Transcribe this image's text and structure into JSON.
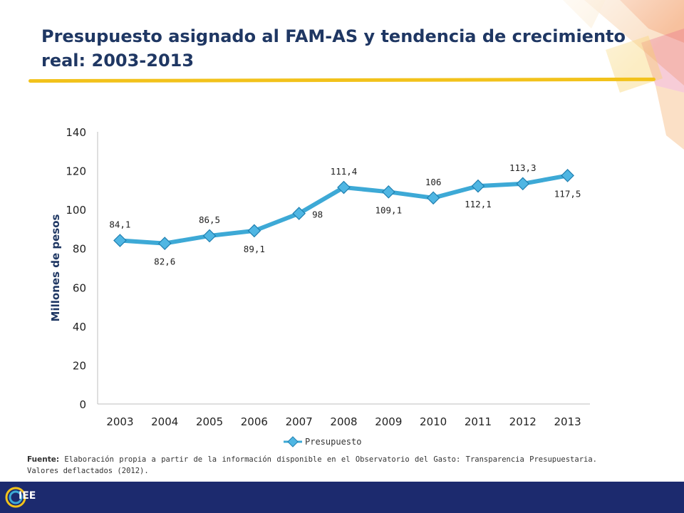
{
  "header": {
    "title": "Presupuesto asignado al FAM-AS y tendencia de crecimiento real: 2003-2013"
  },
  "chart_data": {
    "type": "line",
    "title": "",
    "xlabel": "",
    "ylabel": "Millones de pesos",
    "ylim": [
      0,
      140
    ],
    "yticks": [
      "0",
      "20",
      "40",
      "60",
      "80",
      "100",
      "120",
      "140"
    ],
    "categories": [
      "2003",
      "2004",
      "2005",
      "2006",
      "2007",
      "2008",
      "2009",
      "2010",
      "2011",
      "2012",
      "2013"
    ],
    "series": [
      {
        "name": "Presupuesto",
        "values": [
          84.1,
          82.6,
          86.5,
          89.1,
          98,
          111.4,
          109.1,
          106,
          112.1,
          113.3,
          117.5
        ],
        "labels": [
          "84,1",
          "82,6",
          "86,5",
          "89,1",
          "98",
          "111,4",
          "109,1",
          "106",
          "112,1",
          "113,3",
          "117,5"
        ]
      }
    ],
    "legend": "bottom",
    "grid": false,
    "line_color": "#3da9d6",
    "marker_color": "#4fb6e3"
  },
  "footer": {
    "source_label": "Fuente:",
    "source_text": "Elaboración propia a partir de la información disponible en el Observatorio del Gasto: Transparencia Presupuestaria. Valores deflactados (2012).",
    "logo_text": "IEE",
    "bar_color": "#1c2a6e"
  }
}
